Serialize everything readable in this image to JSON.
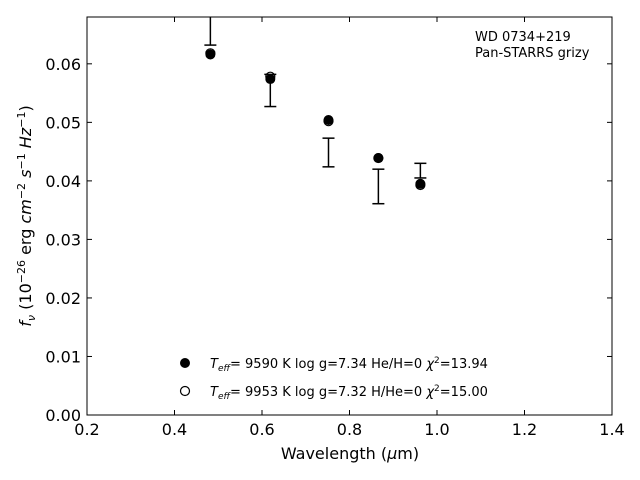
{
  "chart_data": {
    "type": "scatter",
    "xlabel": "Wavelength (μm)",
    "ylabel": "f_ν (10^−26 erg cm^−2 s^−1 Hz^−1)",
    "xlim": [
      0.2,
      1.4
    ],
    "ylim": [
      0.0,
      0.068
    ],
    "x_ticks": [
      0.2,
      0.4,
      0.6,
      0.8,
      1.0,
      1.2,
      1.4
    ],
    "x_tick_labels": [
      "0.2",
      "0.4",
      "0.6",
      "0.8",
      "1.0",
      "1.2",
      "1.4"
    ],
    "y_ticks": [
      0.0,
      0.01,
      0.02,
      0.03,
      0.04,
      0.05,
      0.06
    ],
    "y_tick_labels": [
      "0.00",
      "0.01",
      "0.02",
      "0.03",
      "0.04",
      "0.05",
      "0.06"
    ],
    "grid": false,
    "annotation": [
      "WD 0734+219",
      "Pan-STARRS grizy"
    ],
    "observed": {
      "x": [
        0.482,
        0.619,
        0.752,
        0.866,
        0.962
      ],
      "low": [
        0.0632,
        0.0527,
        0.0424,
        0.0361,
        0.0405
      ],
      "high": [
        0.0695,
        0.0582,
        0.0473,
        0.042,
        0.043
      ]
    },
    "series": [
      {
        "name": "Teff= 9590 K log g=7.34 He/H=0 χ²=13.94",
        "marker": "filled-circle",
        "x": [
          0.482,
          0.619,
          0.752,
          0.866,
          0.962
        ],
        "y": [
          0.0616,
          0.0574,
          0.0504,
          0.0439,
          0.0395
        ]
      },
      {
        "name": "Teff= 9953 K log g=7.32 H/He=0 χ²=15.00",
        "marker": "open-circle",
        "x": [
          0.482,
          0.619,
          0.752,
          0.866,
          0.962
        ],
        "y": [
          0.0618,
          0.0578,
          0.0502,
          0.0439,
          0.0393
        ]
      }
    ],
    "legend": {
      "placement": "lower-center",
      "entries": [
        {
          "teff_value": "9590 K",
          "logg": "log g=7.34",
          "comp": "He/H=0",
          "chi_val": "=13.94"
        },
        {
          "teff_value": "9953 K",
          "logg": "log g=7.32",
          "comp": "H/He=0",
          "chi_val": "=15.00"
        }
      ]
    }
  }
}
